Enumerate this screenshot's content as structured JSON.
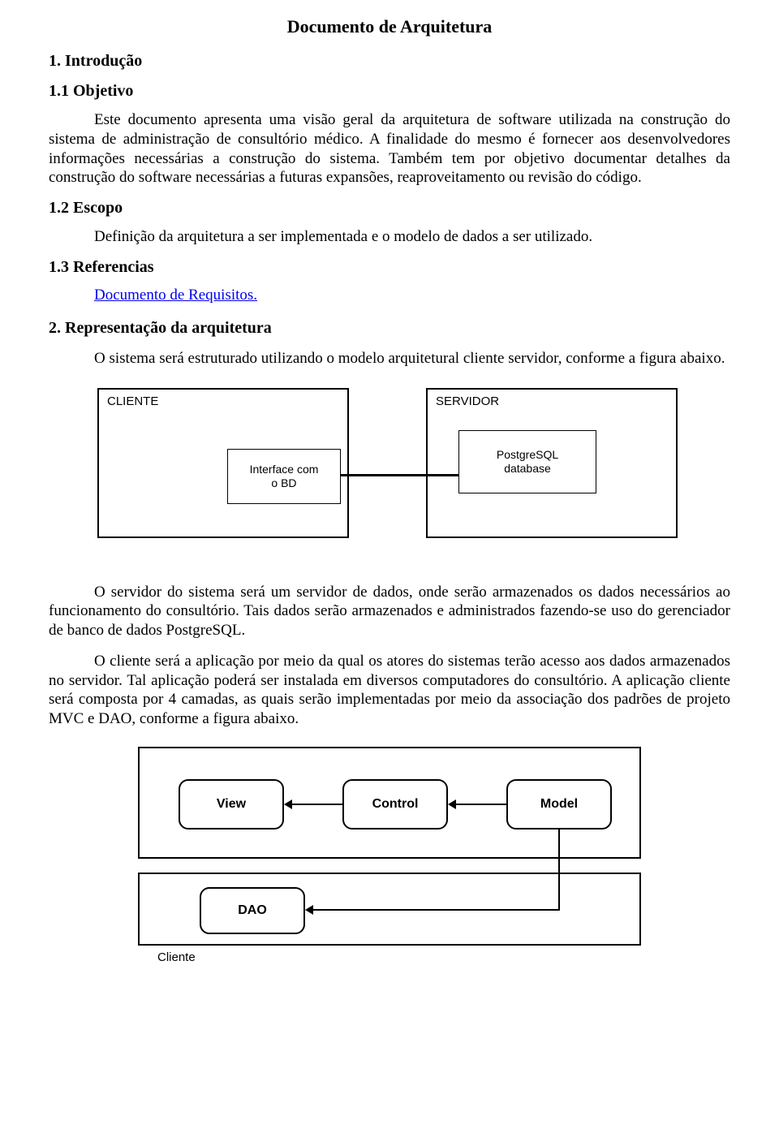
{
  "title": "Documento de Arquitetura",
  "sec1": {
    "heading": "1. Introdução",
    "obj_heading": "1.1 Objetivo",
    "obj_text": "Este documento apresenta uma visão geral da arquitetura de software utilizada na construção do sistema de administração de consultório médico. A finalidade do mesmo é fornecer aos desenvolvedores informações necessárias a construção do sistema. Também tem por objetivo documentar detalhes da construção do software necessárias a futuras expansões, reaproveitamento ou revisão do código.",
    "escopo_heading": "1.2 Escopo",
    "escopo_text": "Definição da arquitetura a ser implementada e o modelo de dados a ser utilizado.",
    "ref_heading": "1.3 Referencias",
    "ref_link": "Documento de Requisitos."
  },
  "sec2": {
    "heading": "2. Representação da arquitetura",
    "p1": "O sistema será estruturado utilizando o modelo arquitetural cliente servidor, conforme a figura abaixo.",
    "p2": "O servidor do sistema será um servidor de dados, onde serão armazenados os dados necessários ao funcionamento do consultório. Tais dados serão armazenados e administrados fazendo-se uso do gerenciador de banco de dados PostgreSQL.",
    "p3": "O cliente será a aplicação por meio da qual os atores do sistemas terão acesso aos dados armazenados no servidor. Tal aplicação poderá ser instalada em diversos computadores do consultório. A aplicação cliente será composta por 4 camadas, as quais serão implementadas por meio da associação dos padrões de projeto MVC e DAO, conforme a figura abaixo."
  },
  "diagram1": {
    "type": "flowchart",
    "background_color": "#ffffff",
    "border_color": "#000000",
    "font_family": "Arial",
    "nodes": {
      "cliente_outer": {
        "label": "CLIENTE"
      },
      "servidor_outer": {
        "label": "SERVIDOR"
      },
      "interface_box": {
        "label": "Interface com\no BD"
      },
      "db_box": {
        "label": "PostgreSQL\ndatabase"
      }
    },
    "edges": [
      {
        "from": "interface_box",
        "to": "db_box",
        "style": "solid",
        "width": 3
      }
    ]
  },
  "diagram2": {
    "type": "flowchart",
    "background_color": "#ffffff",
    "border_color": "#000000",
    "border_radius": 12,
    "font_family": "Arial",
    "nodes": {
      "view": {
        "label": "View"
      },
      "control": {
        "label": "Control"
      },
      "model": {
        "label": "Model"
      },
      "dao": {
        "label": "DAO"
      }
    },
    "container_label": "Cliente",
    "edges": [
      {
        "from": "control",
        "to": "view",
        "dir": "left"
      },
      {
        "from": "model",
        "to": "control",
        "dir": "left"
      },
      {
        "from": "model",
        "to": "dao",
        "dir": "down-left"
      }
    ]
  }
}
